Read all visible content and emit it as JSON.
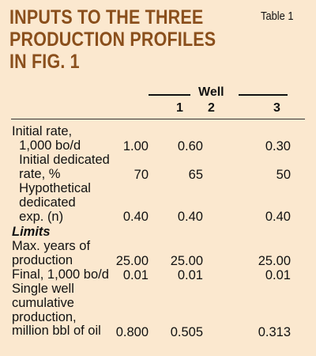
{
  "title": {
    "line1": "INPUTS TO THE THREE",
    "line2": "PRODUCTION PROFILES",
    "line3": "IN FIG. 1"
  },
  "table_label": "Table 1",
  "header": {
    "group": "Well",
    "columns": [
      "1",
      "2",
      "3"
    ]
  },
  "rows": [
    {
      "label_lines": [
        "Initial rate,",
        "  1,000 bo/d"
      ],
      "values": [
        "1.00",
        "0.60",
        "0.30"
      ]
    },
    {
      "label_lines": [
        "  Initial dedicated",
        "  rate, %"
      ],
      "values": [
        "70",
        "65",
        "50"
      ]
    },
    {
      "label_lines": [
        "  Hypothetical",
        "  dedicated",
        "  exp. (n)"
      ],
      "values": [
        "0.40",
        "0.40",
        "0.40"
      ]
    }
  ],
  "section": "Limits",
  "limit_rows": [
    {
      "label_lines": [
        "Max. years of",
        "production"
      ],
      "values": [
        "25.00",
        "25.00",
        "25.00"
      ]
    },
    {
      "label_lines": [
        "Final, 1,000 bo/d"
      ],
      "values": [
        "0.01",
        "0.01",
        "0.01"
      ]
    },
    {
      "label_lines": [
        "Single well",
        "cumulative",
        "production,",
        "million bbl of oil"
      ],
      "values": [
        "0.800",
        "0.505",
        "0.313"
      ]
    }
  ]
}
